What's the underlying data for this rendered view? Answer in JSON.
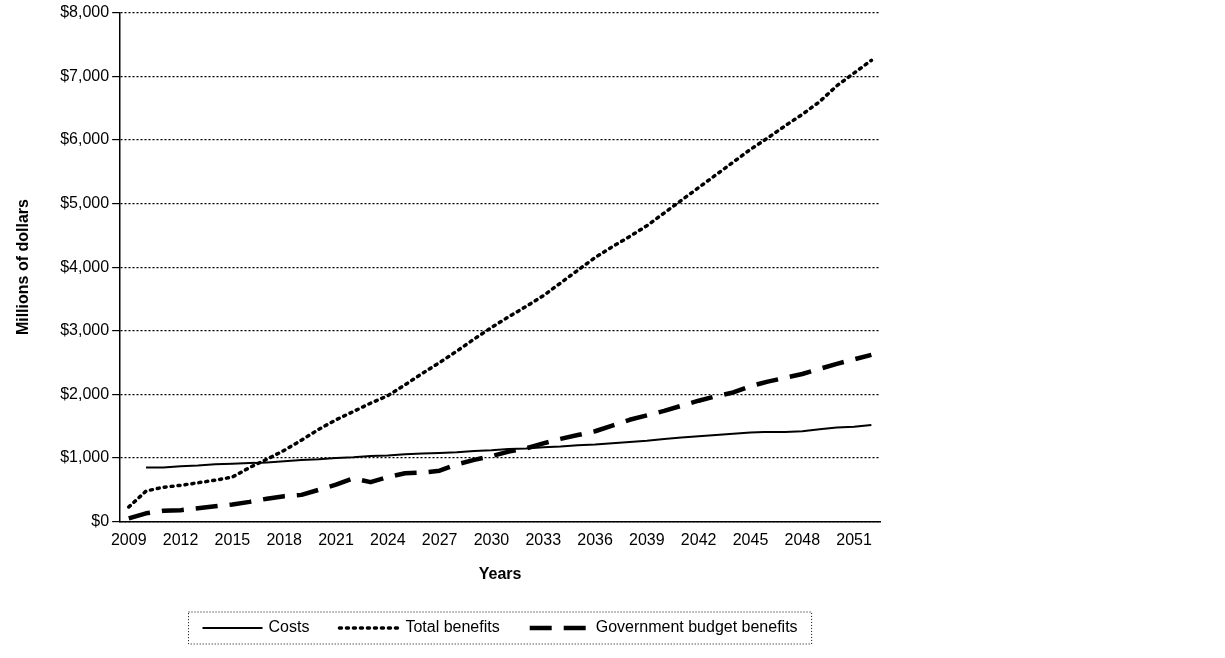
{
  "chart_data": {
    "type": "line",
    "xlabel": "Years",
    "ylabel": "Millions of dollars",
    "categories": [
      "2009",
      null,
      null,
      "2012",
      null,
      null,
      "2015",
      null,
      null,
      "2018",
      null,
      null,
      "2021",
      null,
      null,
      "2024",
      null,
      null,
      "2027",
      null,
      null,
      "2030",
      null,
      null,
      "2033",
      null,
      null,
      "2036",
      null,
      null,
      "2039",
      null,
      null,
      "2042",
      null,
      null,
      "2045",
      null,
      null,
      "2048",
      null,
      null,
      "2051",
      null
    ],
    "series": [
      {
        "name": "Costs",
        "color": "#000000",
        "line_style": "solid",
        "values": [
          null,
          850,
          850,
          870,
          880,
          900,
          910,
          920,
          930,
          950,
          970,
          980,
          1000,
          1010,
          1030,
          1040,
          1060,
          1070,
          1080,
          1090,
          1110,
          1120,
          1140,
          1150,
          1170,
          1180,
          1200,
          1210,
          1230,
          1250,
          1270,
          1300,
          1320,
          1340,
          1360,
          1380,
          1400,
          1410,
          1410,
          1420,
          1450,
          1480,
          1490,
          1520
        ]
      },
      {
        "name": "Total benefits",
        "color": "#000000",
        "line_style": "dotted",
        "values": [
          230,
          480,
          540,
          570,
          610,
          650,
          700,
          850,
          980,
          1120,
          1280,
          1450,
          1600,
          1730,
          1860,
          1980,
          2150,
          2330,
          2500,
          2680,
          2870,
          3050,
          3220,
          3380,
          3550,
          3750,
          3950,
          4150,
          4320,
          4480,
          4650,
          4850,
          5050,
          5250,
          5450,
          5650,
          5850,
          6030,
          6220,
          6400,
          6600,
          6850,
          7050,
          7250
        ]
      },
      {
        "name": "Government budget benefits",
        "color": "#000000",
        "line_style": "dashed",
        "values": [
          50,
          130,
          170,
          180,
          210,
          240,
          270,
          310,
          360,
          400,
          420,
          500,
          580,
          680,
          620,
          700,
          760,
          770,
          800,
          900,
          970,
          1030,
          1100,
          1150,
          1230,
          1300,
          1360,
          1420,
          1510,
          1600,
          1670,
          1740,
          1820,
          1900,
          1970,
          2030,
          2130,
          2200,
          2260,
          2320,
          2400,
          2480,
          2550,
          2620
        ]
      }
    ],
    "ylim": [
      0,
      8000
    ],
    "yticks": [
      {
        "value": 0,
        "label": "$0"
      },
      {
        "value": 1000,
        "label": "$1,000"
      },
      {
        "value": 2000,
        "label": "$2,000"
      },
      {
        "value": 3000,
        "label": "$3,000"
      },
      {
        "value": 4000,
        "label": "$4,000"
      },
      {
        "value": 5000,
        "label": "$5,000"
      },
      {
        "value": 6000,
        "label": "$6,000"
      },
      {
        "value": 7000,
        "label": "$7,000"
      },
      {
        "value": 8000,
        "label": "$8,000"
      }
    ],
    "grid": "y",
    "legend": "bottom",
    "marker": "none"
  }
}
